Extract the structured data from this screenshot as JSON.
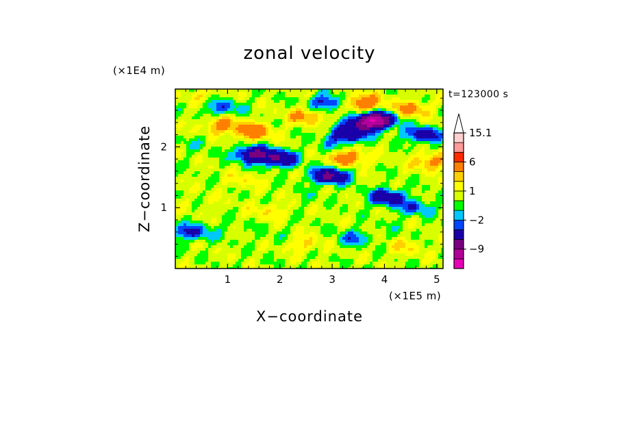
{
  "chart_data": {
    "type": "heatmap",
    "title": "zonal velocity",
    "xlabel": "X−coordinate",
    "ylabel": "Z−coordinate",
    "x_unit": "(×1E5 m)",
    "y_unit": "(×1E4 m)",
    "time_label": "t=123000 s",
    "xlim": [
      0,
      5.12
    ],
    "ylim": [
      0,
      2.95
    ],
    "x_ticks": [
      1,
      2,
      3,
      4,
      5
    ],
    "x_tick_labels": [
      "1",
      "2",
      "3",
      "4",
      "5"
    ],
    "y_ticks": [
      1,
      2
    ],
    "y_tick_labels": [
      "1",
      "2"
    ],
    "colorbar": {
      "levels": [
        -15,
        -12,
        -9,
        -6,
        -3,
        -2,
        -1,
        0,
        1,
        2,
        3,
        6,
        9,
        12,
        15.1
      ],
      "labels": [
        {
          "value": 15.1,
          "text": "15.1"
        },
        {
          "value": 6,
          "text": "6"
        },
        {
          "value": 1,
          "text": "1"
        },
        {
          "value": -2,
          "text": "−2"
        },
        {
          "value": -9,
          "text": "−9"
        }
      ],
      "colors": [
        "#e800b8",
        "#b4009b",
        "#7a0080",
        "#1a00a8",
        "#0045ff",
        "#00c8ff",
        "#00ff00",
        "#d8ff00",
        "#ffff00",
        "#ffd000",
        "#ff8000",
        "#ff2a00",
        "#ff9a9a",
        "#ffd0d0"
      ],
      "extend_max": true
    },
    "features": [
      {
        "x": 3.7,
        "z": 2.4,
        "value": -8.5
      },
      {
        "x": 3.9,
        "z": 2.45,
        "value": -6
      },
      {
        "x": 3.3,
        "z": 2.2,
        "value": -6
      },
      {
        "x": 1.5,
        "z": 1.88,
        "value": -7
      },
      {
        "x": 2.0,
        "z": 1.8,
        "value": -6
      },
      {
        "x": 4.75,
        "z": 2.2,
        "value": -5
      },
      {
        "x": 2.95,
        "z": 1.52,
        "value": -7
      },
      {
        "x": 4.05,
        "z": 1.17,
        "value": -5.5
      },
      {
        "x": 2.9,
        "z": 2.72,
        "value": -4
      },
      {
        "x": 0.9,
        "z": 2.65,
        "value": -3
      },
      {
        "x": 4.6,
        "z": 1.0,
        "value": -3
      },
      {
        "x": 0.3,
        "z": 0.6,
        "value": -4
      },
      {
        "x": 3.4,
        "z": 0.5,
        "value": -2.5
      },
      {
        "x": 1.5,
        "z": 2.25,
        "value": 4.5
      },
      {
        "x": 0.9,
        "z": 2.35,
        "value": 3.5
      },
      {
        "x": 3.3,
        "z": 1.82,
        "value": 4.5
      },
      {
        "x": 3.6,
        "z": 2.72,
        "value": 5
      },
      {
        "x": 4.5,
        "z": 2.62,
        "value": 3.5
      },
      {
        "x": 4.9,
        "z": 1.75,
        "value": 3.5
      },
      {
        "x": 2.5,
        "z": 2.5,
        "value": 3.2
      },
      {
        "x": 0.6,
        "z": 1.1,
        "value": 0.6
      },
      {
        "x": 2.5,
        "z": 0.4,
        "value": 1.8
      },
      {
        "x": 1.8,
        "z": 0.95,
        "value": 1.6
      },
      {
        "x": 4.4,
        "z": 0.35,
        "value": 1.5
      },
      {
        "x": 1.0,
        "z": 0.6,
        "value": -0.6
      },
      {
        "x": 1.8,
        "z": 0.55,
        "value": -0.5
      },
      {
        "x": 4.2,
        "z": 0.7,
        "value": -0.4
      },
      {
        "x": 2.6,
        "z": 1.15,
        "value": -0.5
      },
      {
        "x": 0.4,
        "z": 2.05,
        "value": -0.8
      },
      {
        "x": 3.0,
        "z": 2.0,
        "value": -1.2
      },
      {
        "x": 1.3,
        "z": 1.45,
        "value": 1.2
      },
      {
        "x": 0.5,
        "z": 2.85,
        "value": 1.2
      },
      {
        "x": 3.2,
        "z": 1.1,
        "value": 0.2
      }
    ]
  }
}
